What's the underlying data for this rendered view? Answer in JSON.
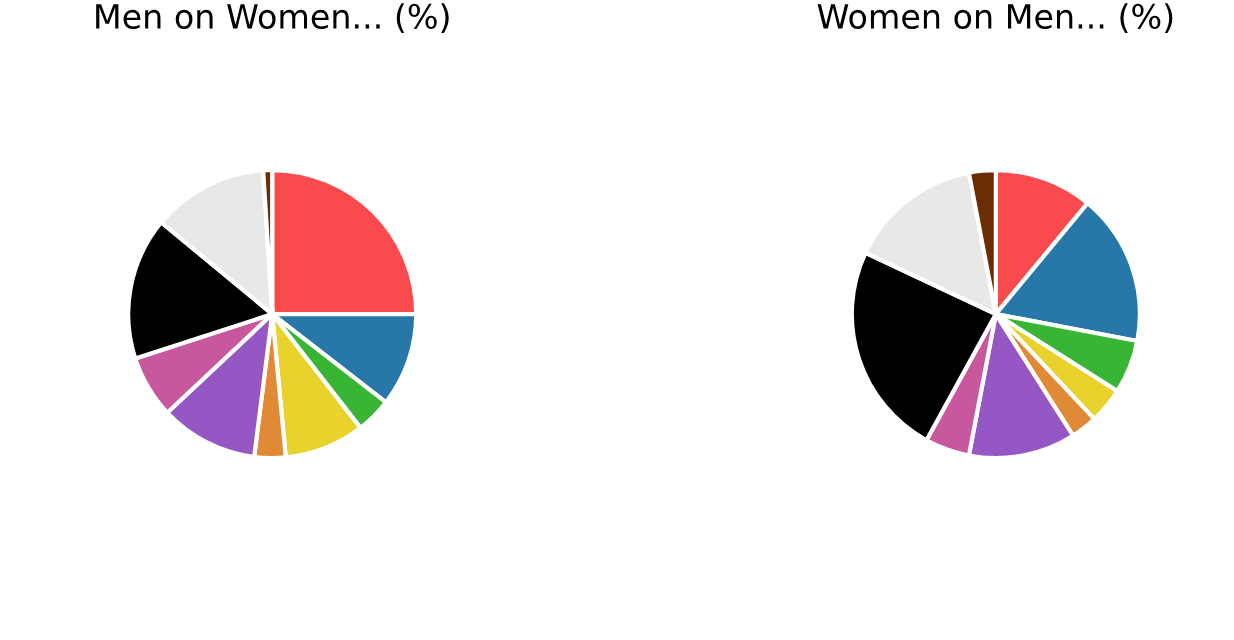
{
  "chart_data": [
    {
      "type": "pie",
      "title": "Men on Women... (%)",
      "categories": [
        null,
        null,
        null,
        null,
        null,
        null,
        null,
        null,
        null,
        null
      ],
      "values": [
        25,
        10.5,
        4,
        9,
        3.5,
        11,
        7,
        16,
        13,
        1
      ],
      "colors": [
        "#f94a4d",
        "#2778a8",
        "#38b534",
        "#e8d22b",
        "#e08a35",
        "#9557c3",
        "#c8589d",
        "#000000",
        "#e8e8e8",
        "#6b2d04"
      ]
    },
    {
      "type": "pie",
      "title": "Women on Men... (%)",
      "categories": [
        null,
        null,
        null,
        null,
        null,
        null,
        null,
        null,
        null,
        null
      ],
      "values": [
        11,
        17,
        6,
        4,
        3,
        12,
        5,
        24,
        15,
        3
      ],
      "colors": [
        "#f94a4d",
        "#2778a8",
        "#38b534",
        "#e8d22b",
        "#e08a35",
        "#9557c3",
        "#c8589d",
        "#000000",
        "#e8e8e8",
        "#6b2d04"
      ]
    }
  ]
}
